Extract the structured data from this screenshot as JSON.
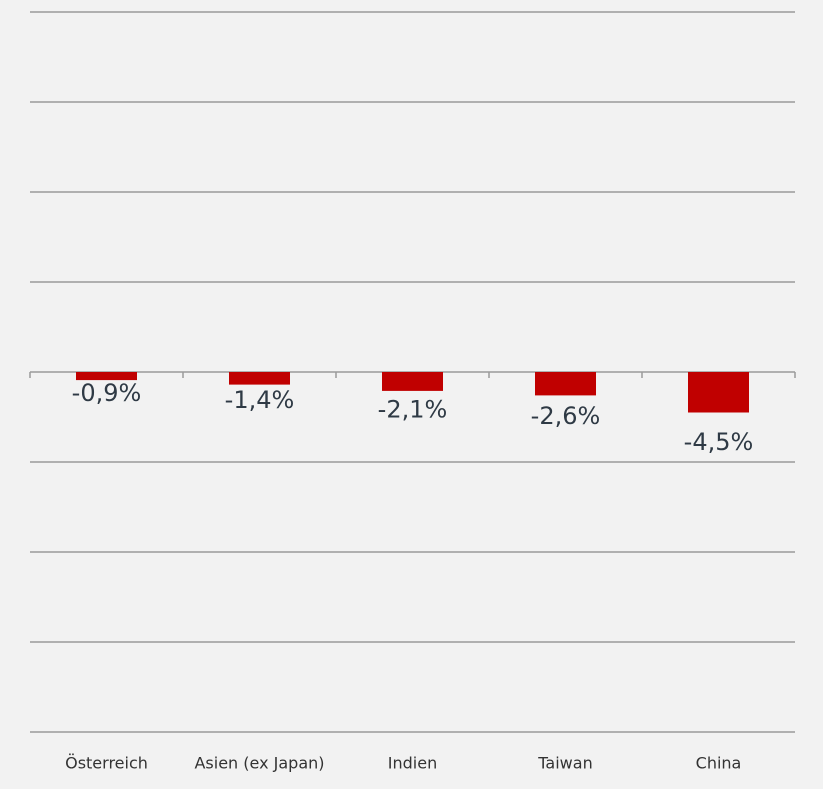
{
  "chart_data": {
    "type": "bar",
    "categories": [
      "Österreich",
      "Asien (ex Japan)",
      "Indien",
      "Taiwan",
      "China"
    ],
    "values": [
      -0.9,
      -1.4,
      -2.1,
      -2.6,
      -4.5
    ],
    "value_labels": [
      "-0,9%",
      "-1,4%",
      "-2,1%",
      "-2,6%",
      "-4,5%"
    ],
    "color": "#c00000",
    "ylim": [
      -40,
      40
    ],
    "yticks": [
      -40,
      -30,
      -20,
      -10,
      0,
      10,
      20,
      30,
      40
    ],
    "grid": true
  }
}
